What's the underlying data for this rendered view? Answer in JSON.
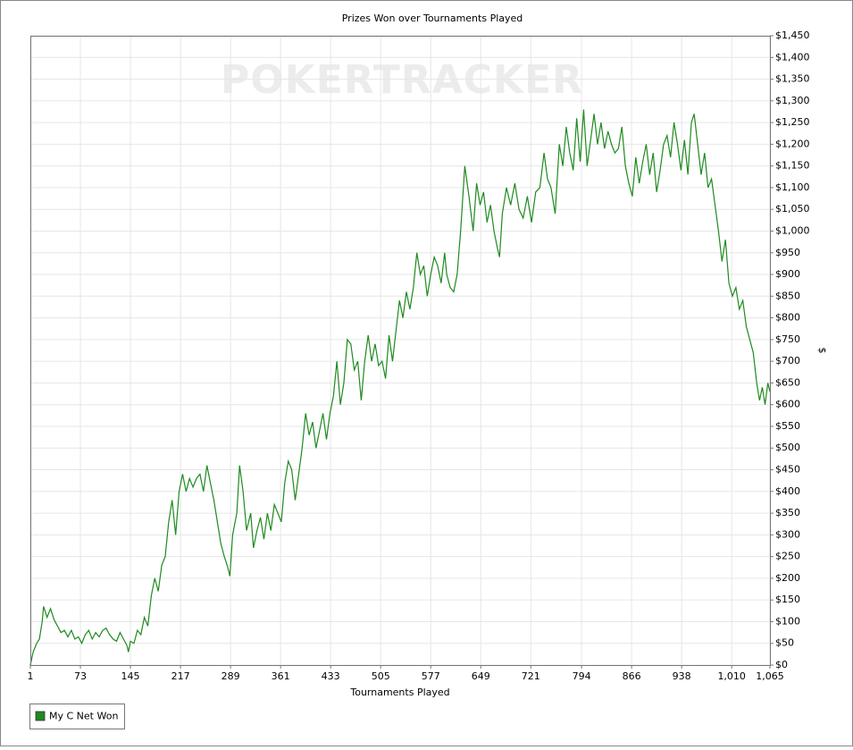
{
  "chart_data": {
    "type": "line",
    "title": "Prizes Won over Tournaments Played",
    "watermark": "POKERTRACKER",
    "x_label": "Tournaments Played",
    "y_label": "$",
    "grid": true,
    "legend": "bottom-left",
    "xlim": [
      1,
      1065
    ],
    "xticks": [
      1,
      73,
      145,
      217,
      289,
      361,
      433,
      505,
      577,
      649,
      721,
      794,
      866,
      938,
      {
        "value": 1010,
        "label": "1,010"
      },
      {
        "value": 1065,
        "label": "1,065"
      }
    ],
    "ylim": [
      0,
      1450
    ],
    "yticks": [
      {
        "value": 0,
        "label": "$0"
      },
      {
        "value": 50,
        "label": "$50"
      },
      {
        "value": 100,
        "label": "$100"
      },
      {
        "value": 150,
        "label": "$150"
      },
      {
        "value": 200,
        "label": "$200"
      },
      {
        "value": 250,
        "label": "$250"
      },
      {
        "value": 300,
        "label": "$300"
      },
      {
        "value": 350,
        "label": "$350"
      },
      {
        "value": 400,
        "label": "$400"
      },
      {
        "value": 450,
        "label": "$450"
      },
      {
        "value": 500,
        "label": "$500"
      },
      {
        "value": 550,
        "label": "$550"
      },
      {
        "value": 600,
        "label": "$600"
      },
      {
        "value": 650,
        "label": "$650"
      },
      {
        "value": 700,
        "label": "$700"
      },
      {
        "value": 750,
        "label": "$750"
      },
      {
        "value": 800,
        "label": "$800"
      },
      {
        "value": 850,
        "label": "$850"
      },
      {
        "value": 900,
        "label": "$900"
      },
      {
        "value": 950,
        "label": "$950"
      },
      {
        "value": 1000,
        "label": "$1,000"
      },
      {
        "value": 1050,
        "label": "$1,050"
      },
      {
        "value": 1100,
        "label": "$1,100"
      },
      {
        "value": 1150,
        "label": "$1,150"
      },
      {
        "value": 1200,
        "label": "$1,200"
      },
      {
        "value": 1250,
        "label": "$1,250"
      },
      {
        "value": 1300,
        "label": "$1,300"
      },
      {
        "value": 1350,
        "label": "$1,350"
      },
      {
        "value": 1400,
        "label": "$1,400"
      },
      {
        "value": 1450,
        "label": "$1,450"
      }
    ],
    "x": [
      1,
      5,
      10,
      14,
      18,
      20,
      25,
      30,
      35,
      40,
      45,
      50,
      55,
      60,
      65,
      70,
      75,
      80,
      85,
      90,
      95,
      100,
      105,
      110,
      115,
      120,
      125,
      130,
      135,
      140,
      142,
      145,
      150,
      155,
      160,
      165,
      170,
      175,
      180,
      185,
      190,
      195,
      200,
      205,
      210,
      215,
      220,
      225,
      230,
      235,
      240,
      245,
      250,
      255,
      260,
      265,
      270,
      275,
      280,
      285,
      288,
      292,
      298,
      302,
      307,
      312,
      318,
      322,
      327,
      332,
      337,
      342,
      347,
      352,
      357,
      362,
      367,
      372,
      377,
      382,
      387,
      392,
      397,
      402,
      407,
      412,
      417,
      422,
      427,
      432,
      437,
      442,
      447,
      452,
      457,
      462,
      467,
      472,
      477,
      482,
      487,
      492,
      497,
      502,
      507,
      512,
      517,
      522,
      527,
      532,
      537,
      542,
      547,
      552,
      557,
      562,
      567,
      572,
      577,
      582,
      587,
      592,
      597,
      600,
      605,
      610,
      615,
      620,
      626,
      632,
      638,
      643,
      648,
      653,
      658,
      663,
      668,
      673,
      676,
      680,
      686,
      692,
      698,
      704,
      710,
      716,
      722,
      728,
      734,
      740,
      745,
      750,
      756,
      762,
      767,
      772,
      777,
      782,
      787,
      792,
      797,
      802,
      807,
      812,
      817,
      822,
      827,
      832,
      837,
      842,
      847,
      852,
      857,
      862,
      867,
      872,
      877,
      882,
      887,
      892,
      897,
      902,
      907,
      912,
      917,
      922,
      927,
      932,
      937,
      942,
      947,
      952,
      956,
      961,
      966,
      971,
      976,
      981,
      986,
      991,
      996,
      1001,
      1006,
      1011,
      1016,
      1021,
      1026,
      1031,
      1036,
      1041,
      1046,
      1050,
      1054,
      1058,
      1062,
      1065
    ],
    "series": [
      {
        "name": "My C Net Won",
        "color": "#1f8a1f",
        "values": [
          0,
          30,
          50,
          60,
          100,
          135,
          110,
          130,
          105,
          90,
          75,
          80,
          65,
          80,
          60,
          65,
          50,
          70,
          80,
          60,
          75,
          65,
          80,
          85,
          70,
          60,
          55,
          75,
          60,
          45,
          30,
          55,
          50,
          80,
          70,
          110,
          90,
          160,
          200,
          170,
          230,
          250,
          330,
          380,
          300,
          400,
          440,
          400,
          430,
          410,
          430,
          440,
          400,
          460,
          420,
          380,
          330,
          280,
          250,
          225,
          205,
          300,
          350,
          460,
          400,
          310,
          350,
          270,
          310,
          340,
          290,
          350,
          310,
          370,
          350,
          330,
          420,
          470,
          450,
          380,
          440,
          500,
          580,
          530,
          560,
          500,
          540,
          580,
          520,
          580,
          620,
          700,
          600,
          650,
          750,
          740,
          680,
          700,
          610,
          700,
          760,
          700,
          740,
          690,
          700,
          660,
          760,
          700,
          770,
          840,
          800,
          860,
          820,
          870,
          950,
          900,
          920,
          850,
          900,
          940,
          920,
          880,
          950,
          900,
          870,
          860,
          900,
          1000,
          1150,
          1080,
          1000,
          1110,
          1060,
          1090,
          1020,
          1060,
          1000,
          960,
          940,
          1040,
          1100,
          1060,
          1110,
          1050,
          1030,
          1080,
          1020,
          1090,
          1100,
          1180,
          1120,
          1100,
          1040,
          1200,
          1150,
          1240,
          1180,
          1140,
          1260,
          1160,
          1280,
          1150,
          1210,
          1270,
          1200,
          1250,
          1190,
          1230,
          1200,
          1180,
          1190,
          1240,
          1150,
          1110,
          1080,
          1170,
          1110,
          1160,
          1200,
          1130,
          1180,
          1090,
          1140,
          1200,
          1220,
          1170,
          1250,
          1200,
          1140,
          1210,
          1130,
          1250,
          1270,
          1200,
          1130,
          1180,
          1100,
          1120,
          1060,
          1000,
          930,
          980,
          880,
          850,
          870,
          820,
          840,
          780,
          750,
          720,
          650,
          610,
          640,
          600,
          650,
          630
        ]
      }
    ]
  }
}
